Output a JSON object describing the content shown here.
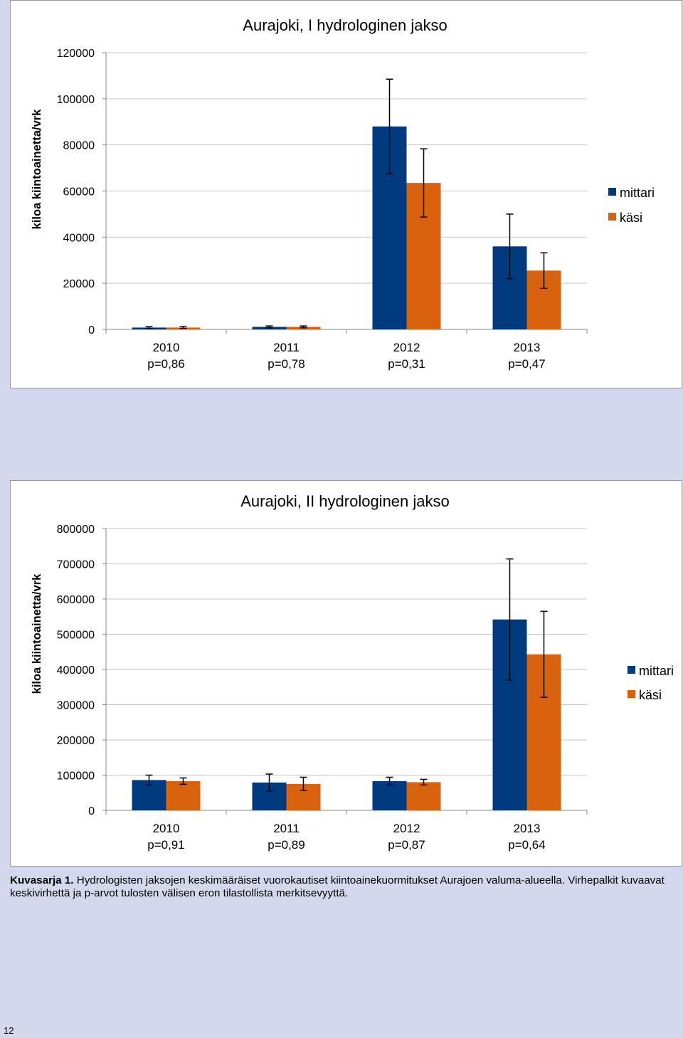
{
  "chart_data": [
    {
      "type": "bar",
      "title": "Aurajoki, I hydrologinen jakso",
      "ylabel": "kiloa kiintoainetta/vrk",
      "xlabel": "",
      "ylim": [
        0,
        120000
      ],
      "yticks": [
        "0",
        "20000",
        "40000",
        "60000",
        "80000",
        "100000",
        "120000"
      ],
      "categories": [
        "2010",
        "2011",
        "2012",
        "2013"
      ],
      "p_values": [
        "p=0,86",
        "p=0,78",
        "p=0,31",
        "p=0,47"
      ],
      "series": [
        {
          "name": "mittari",
          "color": "#003a7f",
          "values": [
            800,
            1100,
            88000,
            36000
          ],
          "errors": [
            400,
            400,
            20500,
            14000
          ]
        },
        {
          "name": "käsi",
          "color": "#d9620f",
          "values": [
            800,
            1100,
            63500,
            25500
          ],
          "errors": [
            400,
            400,
            14800,
            7700
          ]
        }
      ],
      "legend": "right"
    },
    {
      "type": "bar",
      "title": "Aurajoki, II hydrologinen jakso",
      "ylabel": "kiloa kiintoainetta/vrk",
      "xlabel": "",
      "ylim": [
        0,
        800000
      ],
      "yticks": [
        "0",
        "100000",
        "200000",
        "300000",
        "400000",
        "500000",
        "600000",
        "700000",
        "800000"
      ],
      "categories": [
        "2010",
        "2011",
        "2012",
        "2013"
      ],
      "p_values": [
        "p=0,91",
        "p=0,89",
        "p=0,87",
        "p=0,64"
      ],
      "series": [
        {
          "name": "mittari",
          "color": "#003a7f",
          "values": [
            86000,
            79000,
            83000,
            542000
          ],
          "errors": [
            14000,
            24000,
            11000,
            172000
          ]
        },
        {
          "name": "käsi",
          "color": "#d9620f",
          "values": [
            83000,
            75000,
            80000,
            443000
          ],
          "errors": [
            9000,
            19000,
            8000,
            122000
          ]
        }
      ],
      "legend": "right"
    }
  ],
  "caption": {
    "label": "Kuvasarja 1.",
    "text": " Hydrologisten jaksojen keskimääräiset vuorokautiset kiintoainekuormitukset Aurajoen valuma-alueella. Virhepalkit kuvaavat keskivirhettä ja p-arvot tulosten välisen eron tilastollista merkitsevyyttä."
  },
  "page_number": "12"
}
